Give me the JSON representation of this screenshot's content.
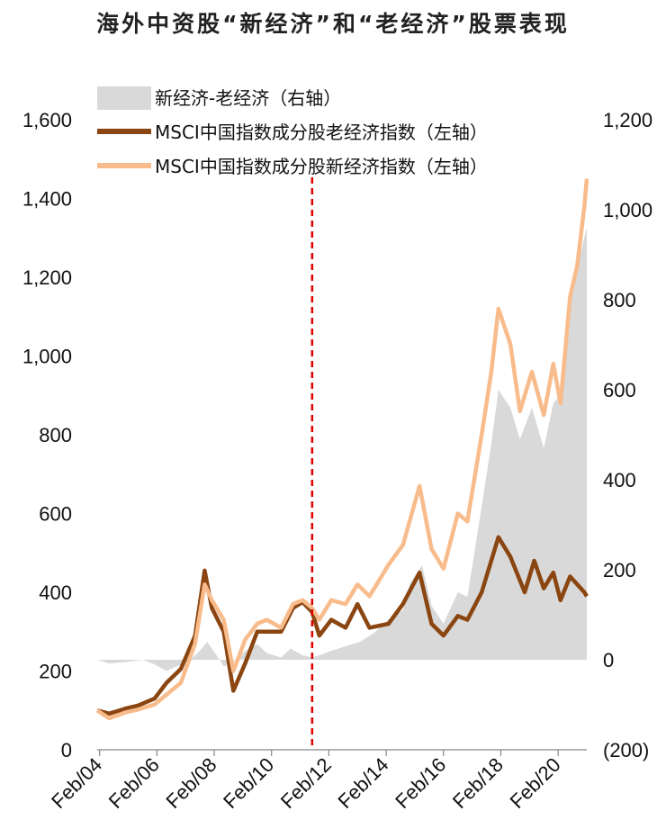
{
  "title": "海外中资股“新经济”和“老经济”股票表现",
  "chart_data": {
    "type": "line",
    "x_start": "2004-01",
    "x_end": "2021-02",
    "x_ticks": [
      "Feb/04",
      "Feb/06",
      "Feb/08",
      "Feb/10",
      "Feb/12",
      "Feb/14",
      "Feb/16",
      "Feb/18",
      "Feb/20"
    ],
    "y_left": {
      "ticks": [
        "0",
        "200",
        "400",
        "600",
        "800",
        "1,000",
        "1,200",
        "1,400",
        "1,600"
      ],
      "lim": [
        0,
        1600
      ]
    },
    "y_right": {
      "ticks": [
        "(200)",
        "0",
        "200",
        "400",
        "600",
        "800",
        "1,000",
        "1,200"
      ],
      "lim": [
        -200,
        1200
      ],
      "negative_color": "#e00000"
    },
    "reference_line": {
      "x": "2011-07",
      "style": "dashed",
      "color": "#e00000"
    },
    "legend_position": "top",
    "series": [
      {
        "name": "新经济-老经济（右轴）",
        "type": "area",
        "axis": "right",
        "color": "#d9d9d9",
        "points": [
          [
            "2004-01",
            0
          ],
          [
            "2004-06",
            -8
          ],
          [
            "2005-01",
            -5
          ],
          [
            "2005-08",
            0
          ],
          [
            "2006-01",
            -10
          ],
          [
            "2006-06",
            -25
          ],
          [
            "2006-10",
            -15
          ],
          [
            "2007-03",
            -5
          ],
          [
            "2007-08",
            20
          ],
          [
            "2007-11",
            40
          ],
          [
            "2008-03",
            10
          ],
          [
            "2008-06",
            -15
          ],
          [
            "2008-10",
            -5
          ],
          [
            "2009-03",
            20
          ],
          [
            "2009-08",
            35
          ],
          [
            "2009-12",
            15
          ],
          [
            "2010-06",
            5
          ],
          [
            "2010-10",
            25
          ],
          [
            "2011-03",
            10
          ],
          [
            "2011-07",
            5
          ],
          [
            "2011-10",
            10
          ],
          [
            "2012-03",
            20
          ],
          [
            "2012-09",
            30
          ],
          [
            "2013-03",
            40
          ],
          [
            "2013-09",
            60
          ],
          [
            "2014-03",
            90
          ],
          [
            "2014-09",
            110
          ],
          [
            "2014-12",
            170
          ],
          [
            "2015-05",
            210
          ],
          [
            "2015-09",
            120
          ],
          [
            "2016-02",
            80
          ],
          [
            "2016-08",
            150
          ],
          [
            "2016-12",
            140
          ],
          [
            "2017-06",
            340
          ],
          [
            "2017-10",
            480
          ],
          [
            "2018-01",
            600
          ],
          [
            "2018-06",
            560
          ],
          [
            "2018-10",
            490
          ],
          [
            "2019-03",
            560
          ],
          [
            "2019-08",
            470
          ],
          [
            "2019-12",
            570
          ],
          [
            "2020-03",
            590
          ],
          [
            "2020-07",
            820
          ],
          [
            "2020-10",
            870
          ],
          [
            "2021-01",
            940
          ],
          [
            "2021-02",
            960
          ]
        ]
      },
      {
        "name": "MSCI中国指数成分股老经济指数（左轴）",
        "type": "line",
        "axis": "left",
        "color": "#8a4511",
        "points": [
          [
            "2004-01",
            100
          ],
          [
            "2004-06",
            92
          ],
          [
            "2005-01",
            105
          ],
          [
            "2005-06",
            112
          ],
          [
            "2006-01",
            130
          ],
          [
            "2006-06",
            170
          ],
          [
            "2006-12",
            205
          ],
          [
            "2007-06",
            290
          ],
          [
            "2007-10",
            455
          ],
          [
            "2008-01",
            360
          ],
          [
            "2008-06",
            300
          ],
          [
            "2008-10",
            150
          ],
          [
            "2009-03",
            220
          ],
          [
            "2009-08",
            300
          ],
          [
            "2009-12",
            300
          ],
          [
            "2010-06",
            300
          ],
          [
            "2010-11",
            360
          ],
          [
            "2011-03",
            375
          ],
          [
            "2011-07",
            350
          ],
          [
            "2011-10",
            290
          ],
          [
            "2012-03",
            330
          ],
          [
            "2012-09",
            310
          ],
          [
            "2013-02",
            370
          ],
          [
            "2013-07",
            310
          ],
          [
            "2014-03",
            320
          ],
          [
            "2014-09",
            370
          ],
          [
            "2015-04",
            450
          ],
          [
            "2015-09",
            320
          ],
          [
            "2016-02",
            290
          ],
          [
            "2016-08",
            340
          ],
          [
            "2016-12",
            330
          ],
          [
            "2017-06",
            400
          ],
          [
            "2018-01",
            540
          ],
          [
            "2018-06",
            490
          ],
          [
            "2018-12",
            400
          ],
          [
            "2019-04",
            480
          ],
          [
            "2019-08",
            410
          ],
          [
            "2019-12",
            450
          ],
          [
            "2020-03",
            380
          ],
          [
            "2020-07",
            440
          ],
          [
            "2020-10",
            420
          ],
          [
            "2021-01",
            400
          ],
          [
            "2021-02",
            390
          ]
        ]
      },
      {
        "name": "MSCI中国指数成分股新经济指数（左轴）",
        "type": "line",
        "axis": "left",
        "color": "#f8bc8c",
        "points": [
          [
            "2004-01",
            100
          ],
          [
            "2004-06",
            80
          ],
          [
            "2005-01",
            95
          ],
          [
            "2005-06",
            102
          ],
          [
            "2006-01",
            115
          ],
          [
            "2006-06",
            140
          ],
          [
            "2006-12",
            170
          ],
          [
            "2007-06",
            270
          ],
          [
            "2007-10",
            420
          ],
          [
            "2008-01",
            380
          ],
          [
            "2008-06",
            330
          ],
          [
            "2008-10",
            200
          ],
          [
            "2009-03",
            280
          ],
          [
            "2009-08",
            320
          ],
          [
            "2009-12",
            330
          ],
          [
            "2010-06",
            310
          ],
          [
            "2010-11",
            370
          ],
          [
            "2011-03",
            380
          ],
          [
            "2011-07",
            360
          ],
          [
            "2011-10",
            330
          ],
          [
            "2012-03",
            380
          ],
          [
            "2012-09",
            370
          ],
          [
            "2013-02",
            420
          ],
          [
            "2013-07",
            390
          ],
          [
            "2014-03",
            470
          ],
          [
            "2014-09",
            520
          ],
          [
            "2015-04",
            670
          ],
          [
            "2015-09",
            510
          ],
          [
            "2016-02",
            460
          ],
          [
            "2016-08",
            600
          ],
          [
            "2016-12",
            580
          ],
          [
            "2017-06",
            800
          ],
          [
            "2017-10",
            960
          ],
          [
            "2018-01",
            1120
          ],
          [
            "2018-06",
            1030
          ],
          [
            "2018-10",
            860
          ],
          [
            "2019-03",
            960
          ],
          [
            "2019-08",
            850
          ],
          [
            "2019-12",
            980
          ],
          [
            "2020-03",
            880
          ],
          [
            "2020-07",
            1150
          ],
          [
            "2020-10",
            1230
          ],
          [
            "2021-01",
            1380
          ],
          [
            "2021-02",
            1450
          ]
        ]
      }
    ]
  }
}
